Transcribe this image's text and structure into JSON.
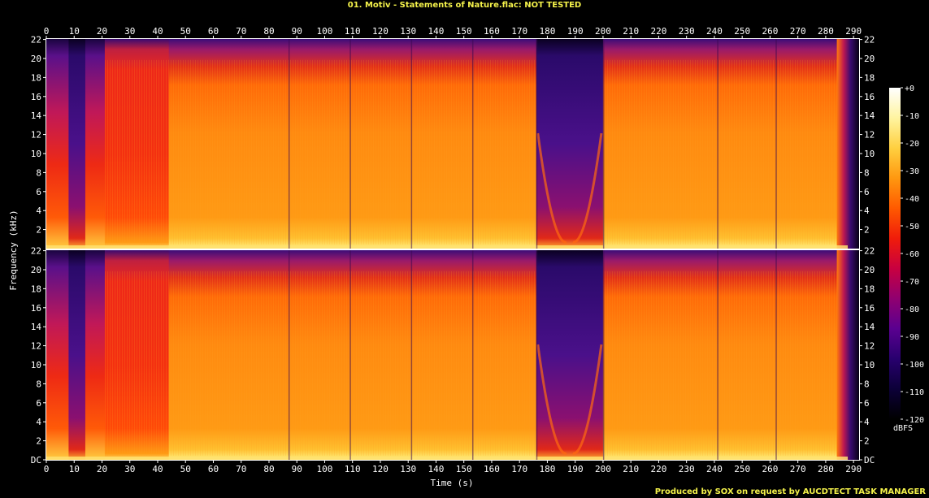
{
  "title": "01. Motiv - Statements of Nature.flac: NOT TESTED",
  "footer": "Produced by SOX on request by AUCDTECT TASK MANAGER",
  "colors": {
    "title": "#f4f24a",
    "footer": "#f4f24a",
    "background": "#000000",
    "axis": "#ffffff"
  },
  "chart_data": {
    "type": "heatmap",
    "title": "01. Motiv - Statements of Nature.flac: NOT TESTED",
    "xlabel": "Time (s)",
    "ylabel": "Frequency (kHz)",
    "xlim": [
      0,
      292
    ],
    "ylim": [
      0,
      22.05
    ],
    "x_ticks": [
      "0",
      "10",
      "20",
      "30",
      "40",
      "50",
      "60",
      "70",
      "80",
      "90",
      "100",
      "110",
      "120",
      "130",
      "140",
      "150",
      "160",
      "170",
      "180",
      "190",
      "200",
      "210",
      "220",
      "230",
      "240",
      "250",
      "260",
      "270",
      "280",
      "290"
    ],
    "y_ticks_top": [
      "2",
      "4",
      "6",
      "8",
      "10",
      "12",
      "14",
      "16",
      "18",
      "20",
      "22"
    ],
    "y_ticks_bottom": [
      "DC",
      "2",
      "4",
      "6",
      "8",
      "10",
      "12",
      "14",
      "16",
      "18",
      "20",
      "22"
    ],
    "channels": [
      "Channel 1",
      "Channel 2"
    ],
    "colorbar": {
      "label": "dBFS",
      "range": [
        -120,
        0
      ],
      "ticks": [
        "+0",
        "-10",
        "-20",
        "-30",
        "-40",
        "-50",
        "-60",
        "-70",
        "-80",
        "-90",
        "-100",
        "-110",
        "-120"
      ],
      "colors": [
        "#ffffff",
        "#fff4a0",
        "#ffd040",
        "#ff9810",
        "#ff5a00",
        "#f01c0a",
        "#c80040",
        "#900070",
        "#5a0090",
        "#28006e",
        "#0c0038",
        "#000000"
      ]
    },
    "segments": [
      {
        "start": 0,
        "end": 8,
        "level": "hot-decay"
      },
      {
        "start": 8,
        "end": 14,
        "level": "quiet"
      },
      {
        "start": 14,
        "end": 21,
        "level": "hot-decay"
      },
      {
        "start": 21,
        "end": 44,
        "level": "loud-red"
      },
      {
        "start": 44,
        "end": 87,
        "level": "loud"
      },
      {
        "start": 87,
        "end": 176,
        "level": "loud"
      },
      {
        "start": 176,
        "end": 200,
        "level": "quiet-sweep"
      },
      {
        "start": 200,
        "end": 284,
        "level": "loud"
      },
      {
        "start": 284,
        "end": 292,
        "level": "fadeout"
      }
    ]
  }
}
